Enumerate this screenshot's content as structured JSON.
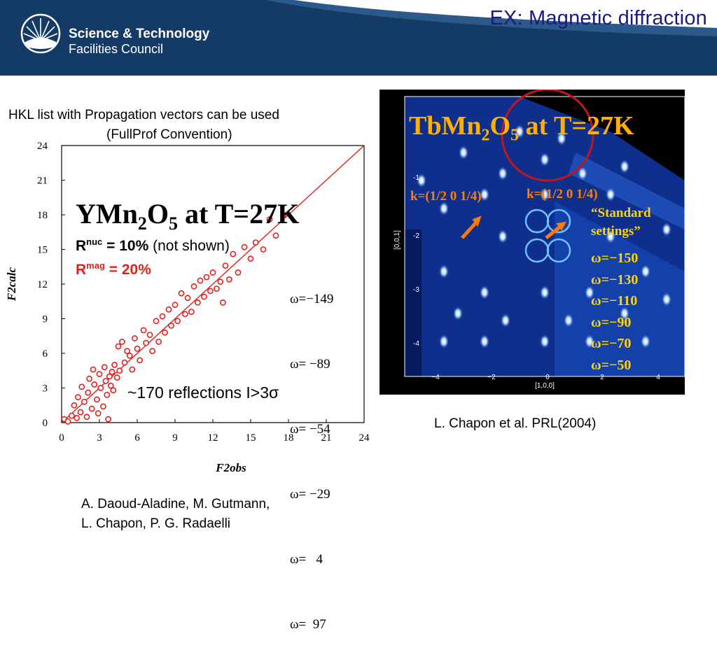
{
  "header": {
    "slide_title": "EX: Magnetic diffraction",
    "org_line1": "Science & Technology",
    "org_line2": "Facilities Council",
    "logo_icon": "stfc-sunburst-logo-icon",
    "bg_color": "#143a66",
    "title_color": "#1a1a80"
  },
  "left_caption": {
    "line1": "HKL list with Propagation vectors can be used",
    "line2": "(FullProf Convention)"
  },
  "left_panel": {
    "compound_main": "YMn",
    "compound_sub1": "2",
    "compound_o": "O",
    "compound_sub2": "5",
    "compound_suffix": " at T=27K",
    "r_nuc_label": "R",
    "r_nuc_sup": "nuc",
    "r_nuc_value": " = 10%",
    "r_nuc_note": " (not shown)",
    "r_mag_label": "R",
    "r_mag_sup": "mag",
    "r_mag_value": " = 20%",
    "omega_list": [
      "ω=−149",
      "ω= −89",
      "ω= −54",
      "ω= −29",
      "ω=   4",
      "ω=  97"
    ],
    "reflections_text": "~170 reflections I>3σ",
    "r_mag_color": "#e0201a"
  },
  "chart_data": {
    "type": "scatter",
    "xlabel": "F2obs",
    "ylabel": "F2calc",
    "xlim": [
      0,
      24
    ],
    "ylim": [
      0,
      24
    ],
    "xticks": [
      "0",
      "3",
      "6",
      "9",
      "12",
      "15",
      "18",
      "21",
      "24"
    ],
    "yticks": [
      "0",
      "3",
      "6",
      "9",
      "12",
      "15",
      "18",
      "21",
      "24"
    ],
    "reference_line": [
      [
        0,
        0
      ],
      [
        24,
        24
      ]
    ],
    "marker_color": "#e0201a",
    "series": [
      {
        "points": [
          [
            0.2,
            0.3
          ],
          [
            0.5,
            0.1
          ],
          [
            0.8,
            0.6
          ],
          [
            1.0,
            1.5
          ],
          [
            1.2,
            0.4
          ],
          [
            1.3,
            2.2
          ],
          [
            1.5,
            0.9
          ],
          [
            1.6,
            3.1
          ],
          [
            1.8,
            1.8
          ],
          [
            2.0,
            0.5
          ],
          [
            2.1,
            2.6
          ],
          [
            2.2,
            3.8
          ],
          [
            2.4,
            1.2
          ],
          [
            2.5,
            4.6
          ],
          [
            2.6,
            3.3
          ],
          [
            2.8,
            2.0
          ],
          [
            2.9,
            0.8
          ],
          [
            3.0,
            4.2
          ],
          [
            3.1,
            3.0
          ],
          [
            3.3,
            1.4
          ],
          [
            3.4,
            4.8
          ],
          [
            3.5,
            3.6
          ],
          [
            3.6,
            2.4
          ],
          [
            3.7,
            0.3
          ],
          [
            3.8,
            4.0
          ],
          [
            3.9,
            3.2
          ],
          [
            4.0,
            4.4
          ],
          [
            4.1,
            2.8
          ],
          [
            4.2,
            5.0
          ],
          [
            4.4,
            3.9
          ],
          [
            4.5,
            6.6
          ],
          [
            4.6,
            4.5
          ],
          [
            4.8,
            7.0
          ],
          [
            5.0,
            5.2
          ],
          [
            5.2,
            6.2
          ],
          [
            5.4,
            5.8
          ],
          [
            5.6,
            4.6
          ],
          [
            5.8,
            7.3
          ],
          [
            6.0,
            6.4
          ],
          [
            6.2,
            5.4
          ],
          [
            6.5,
            8.0
          ],
          [
            6.7,
            6.9
          ],
          [
            7.0,
            7.6
          ],
          [
            7.2,
            6.2
          ],
          [
            7.5,
            8.8
          ],
          [
            7.7,
            7.0
          ],
          [
            8.0,
            9.2
          ],
          [
            8.2,
            7.8
          ],
          [
            8.5,
            9.8
          ],
          [
            8.7,
            8.4
          ],
          [
            9.0,
            10.2
          ],
          [
            9.2,
            8.8
          ],
          [
            9.5,
            11.2
          ],
          [
            9.8,
            9.4
          ],
          [
            10.0,
            10.8
          ],
          [
            10.3,
            9.6
          ],
          [
            10.5,
            11.8
          ],
          [
            10.8,
            10.4
          ],
          [
            11.0,
            12.3
          ],
          [
            11.3,
            10.9
          ],
          [
            11.5,
            12.6
          ],
          [
            11.8,
            11.4
          ],
          [
            12.0,
            13.0
          ],
          [
            12.3,
            11.6
          ],
          [
            12.6,
            12.2
          ],
          [
            12.8,
            10.4
          ],
          [
            13.0,
            13.6
          ],
          [
            13.3,
            12.4
          ],
          [
            13.6,
            14.6
          ],
          [
            14.0,
            13.0
          ],
          [
            14.5,
            15.2
          ],
          [
            15.0,
            14.2
          ],
          [
            15.4,
            15.6
          ],
          [
            16.0,
            15.0
          ],
          [
            16.5,
            17.6
          ],
          [
            17.0,
            16.2
          ],
          [
            17.6,
            18.0
          ]
        ]
      }
    ]
  },
  "right_panel": {
    "compound_main": "TbMn",
    "compound_sub1": "2",
    "compound_o": "O",
    "compound_sub2": "5",
    "compound_suffix": " at T=27K",
    "k_label_left": "k=(1/2 0 1/4)",
    "k_label_right": "k=(1/2 0 1/4)",
    "standard_line1": "“Standard",
    "standard_line2": "settings”",
    "omega_list": [
      "ω=−150",
      "ω=−130",
      "ω=−110",
      "ω=−90",
      "ω=−70",
      "ω=−50"
    ],
    "yaxis_label": "[0,0,1]",
    "xaxis_label": "[1,0,0]",
    "yticks": [
      "-1",
      "-2",
      "-3",
      "-4"
    ],
    "xticks": [
      "−4",
      "−2",
      "0",
      "2",
      "4"
    ],
    "title_color": "#ffb000",
    "k_color": "#ff8000",
    "standard_color": "#ffd400"
  },
  "right_caption": "L. Chapon et al. PRL(2004)",
  "authors": {
    "line1": "A. Daoud-Aladine, M. Gutmann,",
    "line2": "L. Chapon, P. G. Radaelli"
  }
}
